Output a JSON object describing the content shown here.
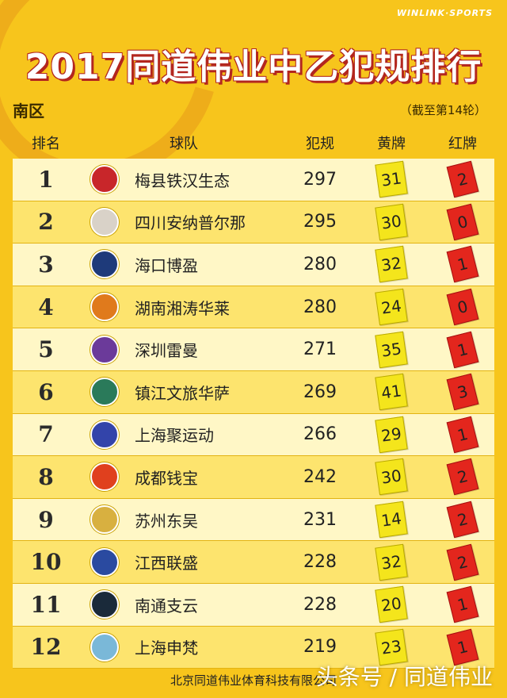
{
  "brand": "WINLINK·SPORTS",
  "title": "2017同道伟业中乙犯规排行",
  "region": "南区",
  "as_of": "（截至第14轮）",
  "headers": {
    "rank": "排名",
    "team": "球队",
    "fouls": "犯规",
    "yellow": "黄牌",
    "red": "红牌"
  },
  "rows": [
    {
      "rank": "1",
      "team": "梅县铁汉生态",
      "fouls": "297",
      "yellow": "31",
      "red": "2",
      "logo_color": "#c8262a"
    },
    {
      "rank": "2",
      "team": "四川安纳普尔那",
      "fouls": "295",
      "yellow": "30",
      "red": "0",
      "logo_color": "#d9d2c8"
    },
    {
      "rank": "3",
      "team": "海口博盈",
      "fouls": "280",
      "yellow": "32",
      "red": "1",
      "logo_color": "#1e3a7a"
    },
    {
      "rank": "4",
      "team": "湖南湘涛华莱",
      "fouls": "280",
      "yellow": "24",
      "red": "0",
      "logo_color": "#e07a1c"
    },
    {
      "rank": "5",
      "team": "深圳雷曼",
      "fouls": "271",
      "yellow": "35",
      "red": "1",
      "logo_color": "#6b3a9a"
    },
    {
      "rank": "6",
      "team": "镇江文旅华萨",
      "fouls": "269",
      "yellow": "41",
      "red": "3",
      "logo_color": "#2a7a5a"
    },
    {
      "rank": "7",
      "team": "上海聚运动",
      "fouls": "266",
      "yellow": "29",
      "red": "1",
      "logo_color": "#3344aa"
    },
    {
      "rank": "8",
      "team": "成都钱宝",
      "fouls": "242",
      "yellow": "30",
      "red": "2",
      "logo_color": "#e0401e"
    },
    {
      "rank": "9",
      "team": "苏州东吴",
      "fouls": "231",
      "yellow": "14",
      "red": "2",
      "logo_color": "#d8b040"
    },
    {
      "rank": "10",
      "team": "江西联盛",
      "fouls": "228",
      "yellow": "32",
      "red": "2",
      "logo_color": "#2a4aa0"
    },
    {
      "rank": "11",
      "team": "南通支云",
      "fouls": "228",
      "yellow": "20",
      "red": "1",
      "logo_color": "#1a2a3a"
    },
    {
      "rank": "12",
      "team": "上海申梵",
      "fouls": "219",
      "yellow": "23",
      "red": "1",
      "logo_color": "#7ab8d8"
    }
  ],
  "footer": "北京同道伟业体育科技有限公司",
  "watermark": "头条号 / 同道伟业"
}
